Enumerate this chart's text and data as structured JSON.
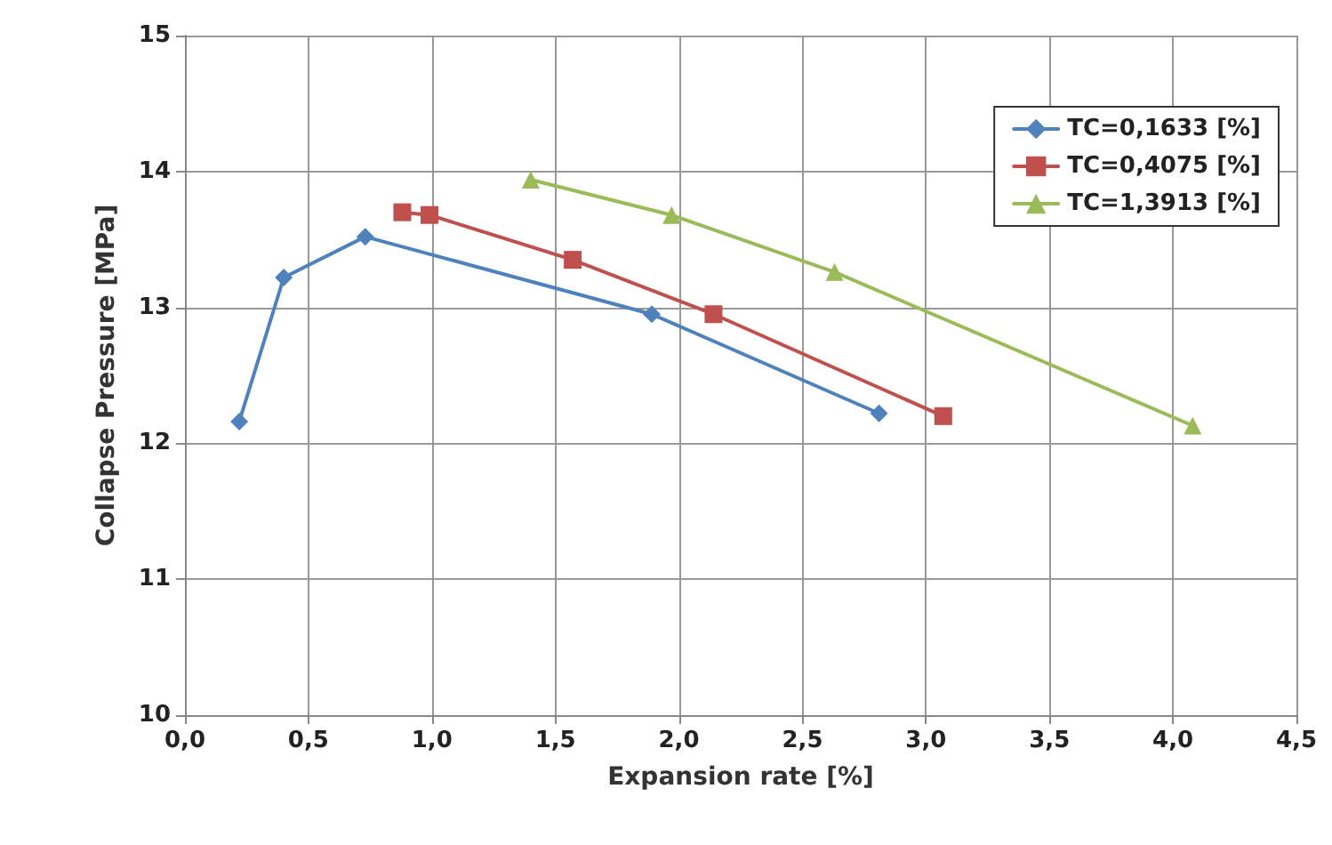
{
  "chart_data": {
    "type": "line",
    "xlabel": "Expansion rate [%]",
    "ylabel": "Collapse Pressure [MPa]",
    "xlim": [
      0,
      4.5
    ],
    "ylim": [
      10,
      15
    ],
    "xticks": [
      {
        "value": 0,
        "label": "0,0"
      },
      {
        "value": 0.5,
        "label": "0,5"
      },
      {
        "value": 1,
        "label": "1,0"
      },
      {
        "value": 1.5,
        "label": "1,5"
      },
      {
        "value": 2,
        "label": "2,0"
      },
      {
        "value": 2.5,
        "label": "2,5"
      },
      {
        "value": 3,
        "label": "3,0"
      },
      {
        "value": 3.5,
        "label": "3,5"
      },
      {
        "value": 4,
        "label": "4,0"
      },
      {
        "value": 4.5,
        "label": "4,5"
      }
    ],
    "yticks": [
      10,
      11,
      12,
      13,
      14,
      15
    ],
    "grid": true,
    "legend": "top right",
    "line_style": "solid",
    "series": [
      {
        "name": "TC=0,1633 [%]",
        "color": "#4f81bd",
        "marker": "diamond",
        "x": [
          0.22,
          0.4,
          0.73,
          1.89,
          2.81
        ],
        "values": [
          12.16,
          13.22,
          13.52,
          12.95,
          12.22
        ]
      },
      {
        "name": "TC=0,4075 [%]",
        "color": "#c0504d",
        "marker": "square",
        "x": [
          0.88,
          0.99,
          1.57,
          2.14,
          3.07
        ],
        "values": [
          13.7,
          13.68,
          13.35,
          12.95,
          12.2
        ]
      },
      {
        "name": "TC=1,3913 [%]",
        "color": "#9bbb59",
        "marker": "triangle",
        "x": [
          1.4,
          1.97,
          2.63,
          4.08
        ],
        "values": [
          13.94,
          13.68,
          13.26,
          12.13
        ]
      }
    ]
  }
}
